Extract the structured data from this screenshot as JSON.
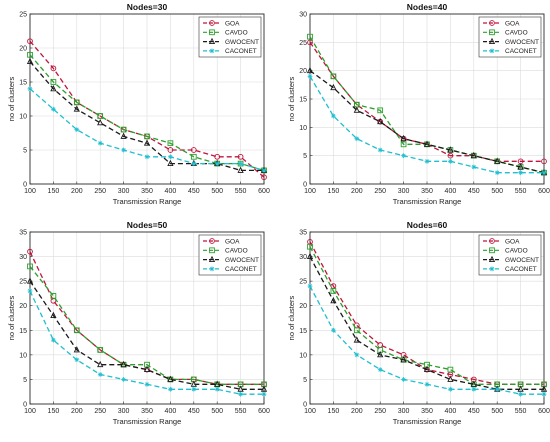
{
  "chart_data": [
    {
      "type": "line",
      "title": "Nodes=30",
      "xlabel": "Transmission Range",
      "ylabel": "no of clusters",
      "x": [
        100,
        150,
        200,
        250,
        300,
        350,
        400,
        450,
        500,
        550,
        600
      ],
      "xlim": [
        100,
        600
      ],
      "ylim": [
        0,
        25
      ],
      "yticks": [
        0,
        5,
        10,
        15,
        20,
        25
      ],
      "grid": true,
      "legend": "top-right",
      "series": [
        {
          "name": "GOA",
          "color": "#c0143c",
          "marker": "circle",
          "values": [
            21,
            17,
            12,
            10,
            8,
            7,
            5,
            5,
            4,
            4,
            1
          ]
        },
        {
          "name": "CAVDO",
          "color": "#2ca02c",
          "marker": "square",
          "values": [
            19,
            15,
            12,
            10,
            8,
            7,
            6,
            4,
            3,
            3,
            2
          ]
        },
        {
          "name": "GWOCENT",
          "color": "#1a1a1a",
          "marker": "triangle",
          "values": [
            18,
            14,
            11,
            9,
            7,
            6,
            3,
            3,
            3,
            2,
            2
          ]
        },
        {
          "name": "CACONET",
          "color": "#1fbfd0",
          "marker": "star",
          "values": [
            14,
            11,
            8,
            6,
            5,
            4,
            4,
            3,
            3,
            3,
            2
          ]
        }
      ]
    },
    {
      "type": "line",
      "title": "Nodes=40",
      "xlabel": "Transmission Range",
      "ylabel": "no of clusters",
      "x": [
        100,
        150,
        200,
        250,
        300,
        350,
        400,
        450,
        500,
        550,
        600
      ],
      "xlim": [
        100,
        600
      ],
      "ylim": [
        0,
        30
      ],
      "yticks": [
        0,
        5,
        10,
        15,
        20,
        25,
        30
      ],
      "grid": true,
      "legend": "top-right",
      "series": [
        {
          "name": "GOA",
          "color": "#c0143c",
          "marker": "circle",
          "values": [
            25,
            19,
            14,
            11,
            8,
            7,
            5,
            5,
            4,
            4,
            4
          ]
        },
        {
          "name": "CAVDO",
          "color": "#2ca02c",
          "marker": "square",
          "values": [
            26,
            19,
            14,
            13,
            7,
            7,
            6,
            5,
            4,
            3,
            2
          ]
        },
        {
          "name": "GWOCENT",
          "color": "#1a1a1a",
          "marker": "triangle",
          "values": [
            20,
            17,
            13,
            11,
            8,
            7,
            6,
            5,
            4,
            3,
            2
          ]
        },
        {
          "name": "CACONET",
          "color": "#1fbfd0",
          "marker": "star",
          "values": [
            19,
            12,
            8,
            6,
            5,
            4,
            4,
            3,
            2,
            2,
            2
          ]
        }
      ]
    },
    {
      "type": "line",
      "title": "Nodes=50",
      "xlabel": "Transmission Range",
      "ylabel": "no of clusters",
      "x": [
        100,
        150,
        200,
        250,
        300,
        350,
        400,
        450,
        500,
        550,
        600
      ],
      "xlim": [
        100,
        600
      ],
      "ylim": [
        0,
        35
      ],
      "yticks": [
        0,
        5,
        10,
        15,
        20,
        25,
        30,
        35
      ],
      "grid": true,
      "legend": "top-right",
      "series": [
        {
          "name": "GOA",
          "color": "#c0143c",
          "marker": "circle",
          "values": [
            31,
            21,
            15,
            11,
            8,
            7,
            5,
            5,
            4,
            4,
            4
          ]
        },
        {
          "name": "CAVDO",
          "color": "#2ca02c",
          "marker": "square",
          "values": [
            28,
            22,
            15,
            11,
            8,
            8,
            5,
            5,
            4,
            4,
            4
          ]
        },
        {
          "name": "GWOCENT",
          "color": "#1a1a1a",
          "marker": "triangle",
          "values": [
            25,
            18,
            11,
            8,
            8,
            7,
            5,
            4,
            4,
            3,
            3
          ]
        },
        {
          "name": "CACONET",
          "color": "#1fbfd0",
          "marker": "star",
          "values": [
            23,
            13,
            9,
            6,
            5,
            4,
            3,
            3,
            3,
            2,
            2
          ]
        }
      ]
    },
    {
      "type": "line",
      "title": "Nodes=60",
      "xlabel": "Transmission Range",
      "ylabel": "no of clusters",
      "x": [
        100,
        150,
        200,
        250,
        300,
        350,
        400,
        450,
        500,
        550,
        600
      ],
      "xlim": [
        100,
        600
      ],
      "ylim": [
        0,
        35
      ],
      "yticks": [
        0,
        5,
        10,
        15,
        20,
        25,
        30,
        35
      ],
      "grid": true,
      "legend": "top-right",
      "series": [
        {
          "name": "GOA",
          "color": "#c0143c",
          "marker": "circle",
          "values": [
            33,
            24,
            16,
            12,
            10,
            7,
            6,
            5,
            4,
            4,
            4
          ]
        },
        {
          "name": "CAVDO",
          "color": "#2ca02c",
          "marker": "square",
          "values": [
            32,
            23,
            15,
            11,
            9,
            8,
            7,
            4,
            4,
            4,
            4
          ]
        },
        {
          "name": "GWOCENT",
          "color": "#1a1a1a",
          "marker": "triangle",
          "values": [
            30,
            21,
            13,
            10,
            9,
            7,
            5,
            4,
            3,
            3,
            3
          ]
        },
        {
          "name": "CACONET",
          "color": "#1fbfd0",
          "marker": "star",
          "values": [
            24,
            15,
            10,
            7,
            5,
            4,
            3,
            3,
            3,
            2,
            2
          ]
        }
      ]
    }
  ]
}
